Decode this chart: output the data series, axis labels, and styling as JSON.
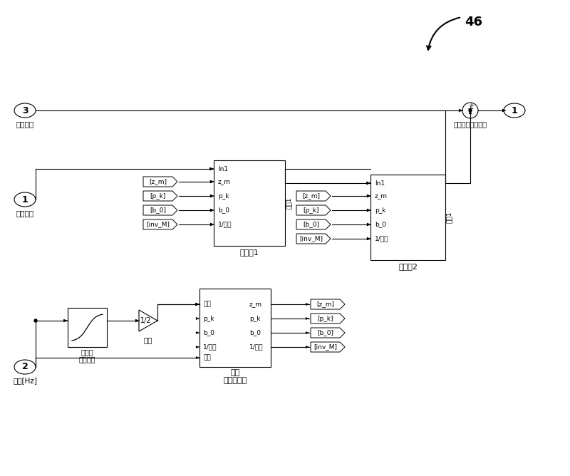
{
  "bg_color": "#ffffff",
  "fig_width": 8.0,
  "fig_height": 6.68,
  "label_3_num": "3",
  "label_3_text": "控制信号",
  "label_1_input_num": "1",
  "label_1_input_text": "输入信号",
  "label_1_output_num": "1",
  "label_1_output_text": "被补偿的控制信号",
  "label_2_num": "2",
  "label_2_text": "频率[Hz]",
  "filter1_title": "滤波器1",
  "filter2_title": "滤波器2",
  "calc_title1": "计算",
  "calc_title2": "滤波器系数",
  "filter_ports": [
    "In1",
    "z_m",
    "p_k",
    "b_0",
    "1/幅値"
  ],
  "filter1_from": [
    "[z_m]",
    "[p_k]",
    "[b_0]",
    "[inv_M]"
  ],
  "filter2_from": [
    "[z_m]",
    "[p_k]",
    "[b_0]",
    "[inv_M]"
  ],
  "filter_output_label": "输出1",
  "calc_port_phase": "相位",
  "calc_port_freq": "频率",
  "calc_ports_out": [
    "z_m",
    "p_k",
    "b_0",
    "1/幅値"
  ],
  "calc_out_bus": [
    "[z_m]",
    "[p_k]",
    "[b_0]",
    "[inv_M]"
  ],
  "freq_phase_label1": "频率到",
  "freq_phase_label2": "相位调整",
  "gain_inside": "1/2",
  "gain_label": "增益",
  "ref_num": "46"
}
